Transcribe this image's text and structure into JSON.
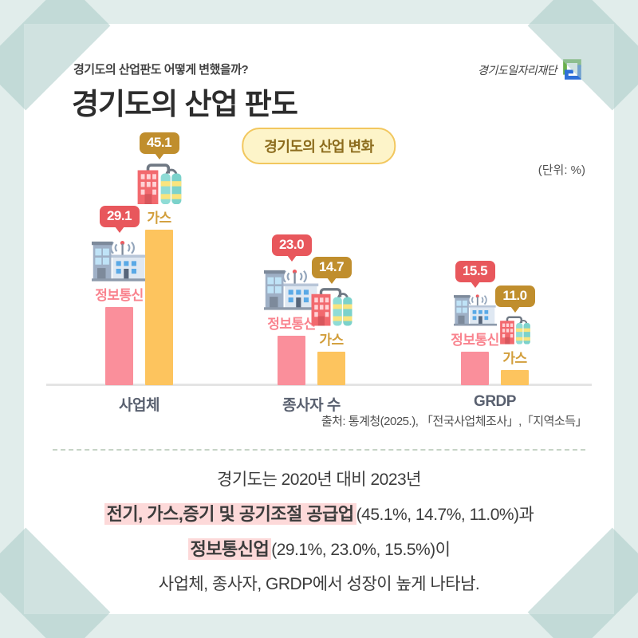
{
  "page": {
    "subtitle": "경기도의 산업판도 어떻게 변했을까?",
    "title": "경기도의 산업 판도",
    "logo_text": "경기도일자리재단"
  },
  "chart": {
    "badge": "경기도의 산업 변화",
    "unit_label": "(단위: %)",
    "source": "출처: 통계청(2025.), 「전국사업체조사」,「지역소득」"
  },
  "chart_data": {
    "type": "bar",
    "title": "경기도의 산업 변화",
    "unit": "%",
    "categories": [
      "사업체",
      "종사자 수",
      "GRDP"
    ],
    "series": [
      {
        "name": "정보통신",
        "color": "#fa8f9b",
        "bubble_color": "#e8575c",
        "label_color": "#f9838e",
        "values": [
          29.1,
          23.0,
          15.5
        ]
      },
      {
        "name": "가스",
        "color": "#fdc45e",
        "bubble_color": "#c08e2d",
        "label_color": "#d29e3b",
        "values": [
          45.1,
          14.7,
          11.0
        ]
      }
    ],
    "value_labels": [
      [
        "29.1",
        "45.1"
      ],
      [
        "23.0",
        "14.7"
      ],
      [
        "15.5",
        "11.0"
      ]
    ],
    "legend_position": "above-bars",
    "grid": false
  },
  "summary": {
    "line1": "경기도는 2020년 대비 2023년",
    "line2_highlight": "전기, 가스,증기 및 공기조절 공급업",
    "line2_rest": "(45.1%, 14.7%, 11.0%)과",
    "line3_highlight": "정보통신업",
    "line3_rest": "(29.1%, 23.0%, 15.5%)이",
    "line4": "사업체, 종사자, GRDP에서 성장이 높게 나타남."
  },
  "colors": {
    "background": "#e1edeb",
    "card": "#ffffff",
    "tape": "#aacac7",
    "pink_bar": "#fa8f9b",
    "yellow_bar": "#fdc45e",
    "red_bubble": "#e8575c",
    "amber_bubble": "#c08e2d",
    "badge_bg": "#fdf4c9",
    "badge_border": "#f2c75e",
    "highlight_bg": "#fdd9d9"
  }
}
